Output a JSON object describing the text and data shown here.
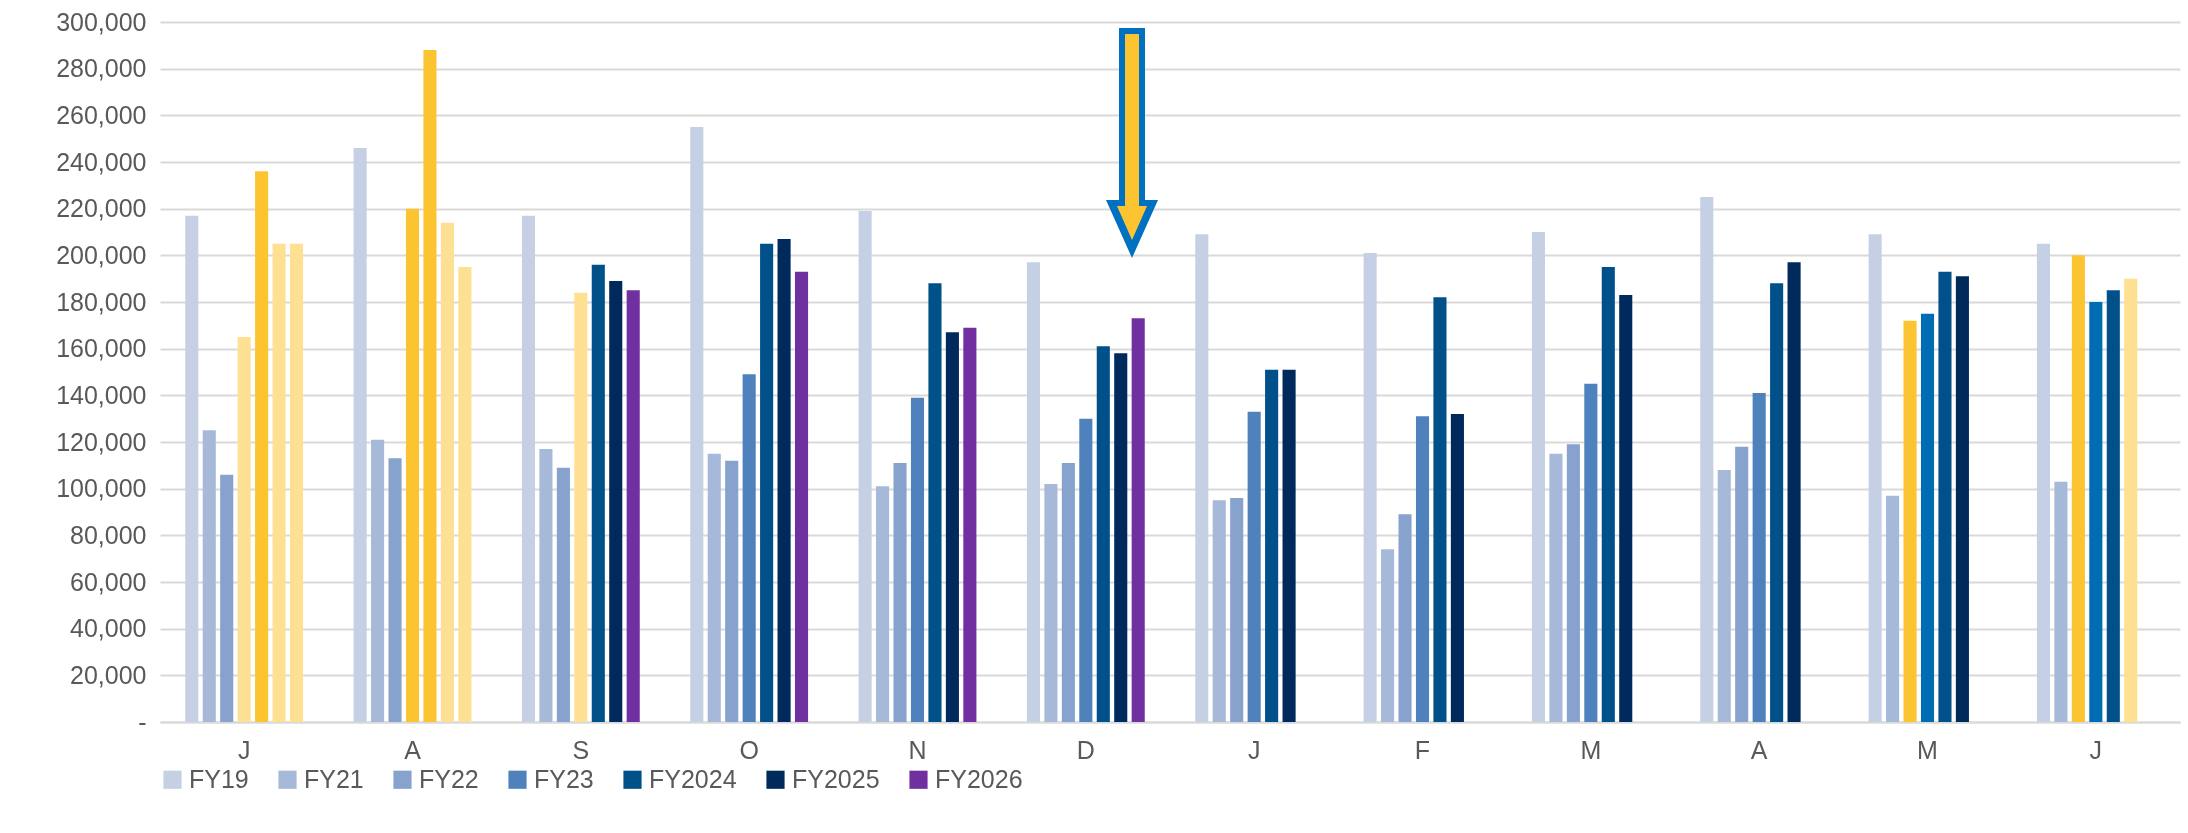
{
  "chart_data": {
    "type": "bar",
    "categories": [
      "J",
      "A",
      "S",
      "O",
      "N",
      "D",
      "J",
      "F",
      "M",
      "A",
      "M",
      "J"
    ],
    "series": [
      {
        "name": "FY19",
        "color": "#c5d0e4",
        "values": [
          217000,
          246000,
          217000,
          255000,
          219000,
          197000,
          209000,
          201000,
          210000,
          225000,
          209000,
          205000
        ]
      },
      {
        "name": "FY21",
        "color": "#a6b9d9",
        "values": [
          125000,
          121000,
          117000,
          115000,
          101000,
          102000,
          95000,
          74000,
          115000,
          108000,
          97000,
          103000
        ]
      },
      {
        "name": "FY22",
        "color": "#87a3cd",
        "values": [
          106000,
          113000,
          109000,
          112000,
          111000,
          111000,
          96000,
          89000,
          119000,
          118000,
          172000,
          200000
        ],
        "colors": [
          "#87a3cd",
          "#87a3cd",
          "#87a3cd",
          "#87a3cd",
          "#87a3cd",
          "#87a3cd",
          "#87a3cd",
          "#87a3cd",
          "#87a3cd",
          "#87a3cd",
          "#fdc431",
          "#fdc431"
        ]
      },
      {
        "name": "FY23",
        "color": "#4f81bd",
        "values": [
          165000,
          220000,
          184000,
          149000,
          139000,
          130000,
          133000,
          131000,
          145000,
          141000,
          175000,
          180000
        ],
        "colors": [
          "#fde092",
          "#fdc431",
          "#fde092",
          "#4f81bd",
          "#4f81bd",
          "#4f81bd",
          "#4f81bd",
          "#4f81bd",
          "#4f81bd",
          "#4f81bd",
          "#006cb3",
          "#006cb3"
        ]
      },
      {
        "name": "FY2024",
        "color": "#00508a",
        "values": [
          236000,
          288000,
          196000,
          205000,
          188000,
          161000,
          151000,
          182000,
          195000,
          188000,
          193000,
          185000
        ],
        "colors": [
          "#fdc431",
          "#fdc431",
          "#00508a",
          "#00508a",
          "#00508a",
          "#00508a",
          "#00508a",
          "#00508a",
          "#00508a",
          "#00508a",
          "#00508a",
          "#00508a"
        ]
      },
      {
        "name": "FY2025",
        "color": "#002a5c",
        "values": [
          205000,
          214000,
          189000,
          207000,
          167000,
          158000,
          151000,
          132000,
          183000,
          197000,
          191000,
          190000
        ],
        "colors": [
          "#fde092",
          "#fde092",
          "#002a5c",
          "#002a5c",
          "#002a5c",
          "#002a5c",
          "#002a5c",
          "#002a5c",
          "#002a5c",
          "#002a5c",
          "#002a5c",
          "#fde092"
        ]
      },
      {
        "name": "FY2026",
        "color": "#7030a0",
        "values": [
          205000,
          195000,
          185000,
          193000,
          169000,
          173000,
          null,
          null,
          null,
          null,
          null,
          null
        ],
        "colors": [
          "#fde092",
          "#fde092",
          "#7030a0",
          "#7030a0",
          "#7030a0",
          "#7030a0",
          "#7030a0",
          "#7030a0",
          "#7030a0",
          "#7030a0",
          "#7030a0",
          "#7030a0"
        ]
      }
    ],
    "ylim": [
      0,
      300000
    ],
    "yticks": [
      {
        "value": 0,
        "label": "-"
      },
      {
        "value": 20000,
        "label": "20,000"
      },
      {
        "value": 40000,
        "label": "40,000"
      },
      {
        "value": 60000,
        "label": "60,000"
      },
      {
        "value": 80000,
        "label": "80,000"
      },
      {
        "value": 100000,
        "label": "100,000"
      },
      {
        "value": 120000,
        "label": "120,000"
      },
      {
        "value": 140000,
        "label": "140,000"
      },
      {
        "value": 160000,
        "label": "160,000"
      },
      {
        "value": 180000,
        "label": "180,000"
      },
      {
        "value": 200000,
        "label": "200,000"
      },
      {
        "value": 220000,
        "label": "220,000"
      },
      {
        "value": 240000,
        "label": "240,000"
      },
      {
        "value": 260000,
        "label": "260,000"
      },
      {
        "value": 280000,
        "label": "280,000"
      },
      {
        "value": 300000,
        "label": "300,000"
      }
    ],
    "grid": "y",
    "legend": "bottom"
  }
}
